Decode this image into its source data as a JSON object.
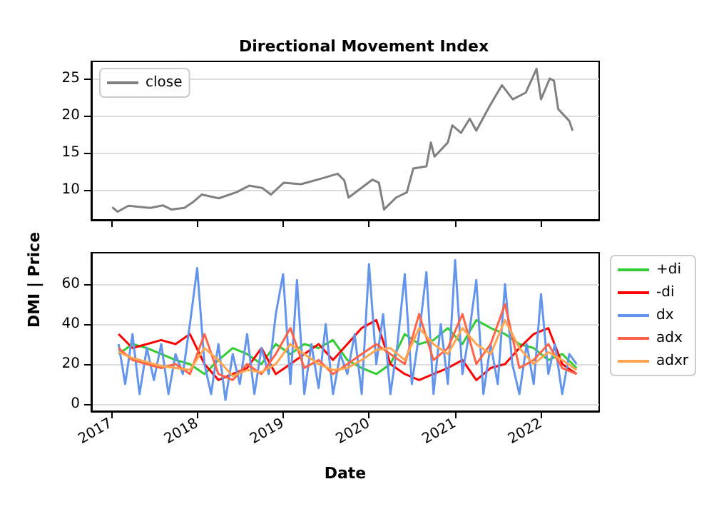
{
  "chart_data": [
    {
      "type": "line",
      "title": "Directional Movement Index",
      "xlim": [
        "2016-10-08",
        "2022-09-05"
      ],
      "xticks": [
        "2017",
        "2018",
        "2019",
        "2020",
        "2021",
        "2022"
      ],
      "ylim": [
        6,
        27.3
      ],
      "yticks": [
        10,
        15,
        20,
        25
      ],
      "grid": "y",
      "legend": "top left",
      "tick_labels": "y",
      "marker": "none",
      "line_style": "solid",
      "x": [
        "2017-01-05",
        "2017-01-28",
        "2017-03-15",
        "2017-06-15",
        "2017-08-08",
        "2017-09-13",
        "2017-11-07",
        "2017-12-15",
        "2018-01-20",
        "2018-04-03",
        "2018-06-16",
        "2018-08-10",
        "2018-10-04",
        "2018-11-10",
        "2019-01-04",
        "2019-03-18",
        "2019-06-18",
        "2019-08-21",
        "2019-09-18",
        "2019-10-06",
        "2019-11-30",
        "2020-01-15",
        "2020-02-12",
        "2020-03-05",
        "2020-04-25",
        "2020-06-10",
        "2020-07-07",
        "2020-09-01",
        "2020-09-20",
        "2020-10-05",
        "2020-12-01",
        "2020-12-20",
        "2021-01-26",
        "2021-03-04",
        "2021-04-01",
        "2021-05-26",
        "2021-07-19",
        "2021-09-03",
        "2021-10-28",
        "2021-12-13",
        "2022-01-01",
        "2022-02-07",
        "2022-02-25",
        "2022-03-15",
        "2022-05-01",
        "2022-05-15"
      ],
      "series": [
        {
          "name": "close",
          "color": "#808080",
          "values": [
            7.7,
            7.1,
            7.9,
            7.6,
            7.95,
            7.4,
            7.6,
            8.4,
            9.4,
            8.9,
            9.7,
            10.6,
            10.3,
            9.4,
            11.0,
            10.8,
            11.6,
            12.2,
            11.3,
            9.0,
            10.3,
            11.4,
            11.0,
            7.4,
            9.0,
            9.7,
            12.9,
            13.2,
            16.4,
            14.5,
            16.4,
            18.7,
            17.7,
            19.6,
            18.0,
            21.2,
            24.1,
            22.2,
            23.1,
            26.3,
            22.2,
            25.0,
            24.7,
            20.9,
            19.3,
            18.0
          ]
        }
      ]
    },
    {
      "type": "line",
      "xlabel": "Date",
      "ylabel": "DMI | Price",
      "xlim": [
        "2016-10-08",
        "2022-09-05"
      ],
      "xticks": [
        "2017",
        "2018",
        "2019",
        "2020",
        "2021",
        "2022"
      ],
      "ylim": [
        -3.6,
        75.7
      ],
      "yticks": [
        0,
        20,
        40,
        60
      ],
      "grid": "y",
      "legend": "right",
      "marker": "none",
      "line_style": "solid",
      "x": [
        "2017-02-01",
        "2017-04-01",
        "2017-06-01",
        "2017-08-01",
        "2017-10-01",
        "2017-12-01",
        "2018-02-01",
        "2018-04-01",
        "2018-06-01",
        "2018-08-01",
        "2018-10-01",
        "2018-12-01",
        "2019-02-01",
        "2019-04-01",
        "2019-06-01",
        "2019-08-01",
        "2019-10-01",
        "2019-12-01",
        "2020-02-01",
        "2020-04-01",
        "2020-06-01",
        "2020-08-01",
        "2020-10-01",
        "2020-12-01",
        "2021-02-01",
        "2021-04-01",
        "2021-06-01",
        "2021-08-01",
        "2021-10-01",
        "2021-12-01",
        "2022-02-01",
        "2022-04-01",
        "2022-06-01"
      ],
      "series": [
        {
          "name": "+di",
          "color": "#32cd32",
          "values": [
            25,
            30,
            28,
            25,
            22,
            20,
            15,
            22,
            28,
            25,
            20,
            30,
            25,
            30,
            28,
            32,
            22,
            18,
            15,
            20,
            35,
            30,
            32,
            38,
            30,
            42,
            38,
            35,
            30,
            28,
            22,
            25,
            18
          ]
        },
        {
          "name": "-di",
          "color": "#ff0000",
          "values": [
            35,
            28,
            30,
            32,
            30,
            35,
            20,
            12,
            15,
            18,
            28,
            15,
            20,
            25,
            30,
            22,
            30,
            38,
            42,
            20,
            15,
            12,
            15,
            18,
            22,
            12,
            18,
            20,
            28,
            35,
            38,
            20,
            15
          ]
        },
        {
          "name": "dx",
          "color": "#6495ed",
          "x": [
            "2017-02-01",
            "2017-03-01",
            "2017-04-01",
            "2017-05-01",
            "2017-06-01",
            "2017-07-01",
            "2017-08-01",
            "2017-09-01",
            "2017-10-01",
            "2017-11-01",
            "2017-12-01",
            "2018-01-01",
            "2018-02-01",
            "2018-03-01",
            "2018-04-01",
            "2018-05-01",
            "2018-06-01",
            "2018-07-01",
            "2018-08-01",
            "2018-09-01",
            "2018-10-01",
            "2018-11-01",
            "2018-12-01",
            "2019-01-01",
            "2019-02-01",
            "2019-03-01",
            "2019-04-01",
            "2019-05-01",
            "2019-06-01",
            "2019-07-01",
            "2019-08-01",
            "2019-09-01",
            "2019-10-01",
            "2019-11-01",
            "2019-12-01",
            "2020-01-01",
            "2020-02-01",
            "2020-03-01",
            "2020-04-01",
            "2020-05-01",
            "2020-06-01",
            "2020-07-01",
            "2020-08-01",
            "2020-09-01",
            "2020-10-01",
            "2020-11-01",
            "2020-12-01",
            "2021-01-01",
            "2021-02-01",
            "2021-03-01",
            "2021-04-01",
            "2021-05-01",
            "2021-06-01",
            "2021-07-01",
            "2021-08-01",
            "2021-09-01",
            "2021-10-01",
            "2021-11-01",
            "2021-12-01",
            "2022-01-01",
            "2022-02-01",
            "2022-03-01",
            "2022-04-01",
            "2022-05-01",
            "2022-06-01"
          ],
          "values": [
            30,
            10,
            35,
            5,
            28,
            12,
            30,
            5,
            25,
            15,
            40,
            68,
            20,
            5,
            30,
            2,
            25,
            10,
            35,
            5,
            28,
            15,
            45,
            65,
            10,
            62,
            5,
            30,
            8,
            40,
            5,
            25,
            15,
            35,
            5,
            70,
            20,
            45,
            5,
            30,
            65,
            10,
            35,
            66,
            5,
            40,
            10,
            72,
            15,
            35,
            62,
            5,
            30,
            10,
            60,
            20,
            5,
            30,
            10,
            55,
            15,
            30,
            5,
            25,
            20
          ]
        },
        {
          "name": "adx",
          "color": "#ff6347",
          "values": [
            28,
            22,
            20,
            18,
            20,
            15,
            35,
            15,
            12,
            20,
            15,
            25,
            38,
            18,
            22,
            15,
            20,
            25,
            30,
            25,
            20,
            45,
            22,
            28,
            45,
            20,
            30,
            50,
            18,
            22,
            30,
            18,
            15
          ]
        },
        {
          "name": "adxr",
          "color": "#ffa54f",
          "values": [
            26,
            23,
            21,
            19,
            18,
            17,
            28,
            22,
            14,
            17,
            16,
            20,
            30,
            25,
            20,
            17,
            18,
            22,
            27,
            28,
            22,
            38,
            30,
            25,
            38,
            30,
            25,
            42,
            28,
            20,
            26,
            22,
            17
          ]
        }
      ]
    }
  ]
}
